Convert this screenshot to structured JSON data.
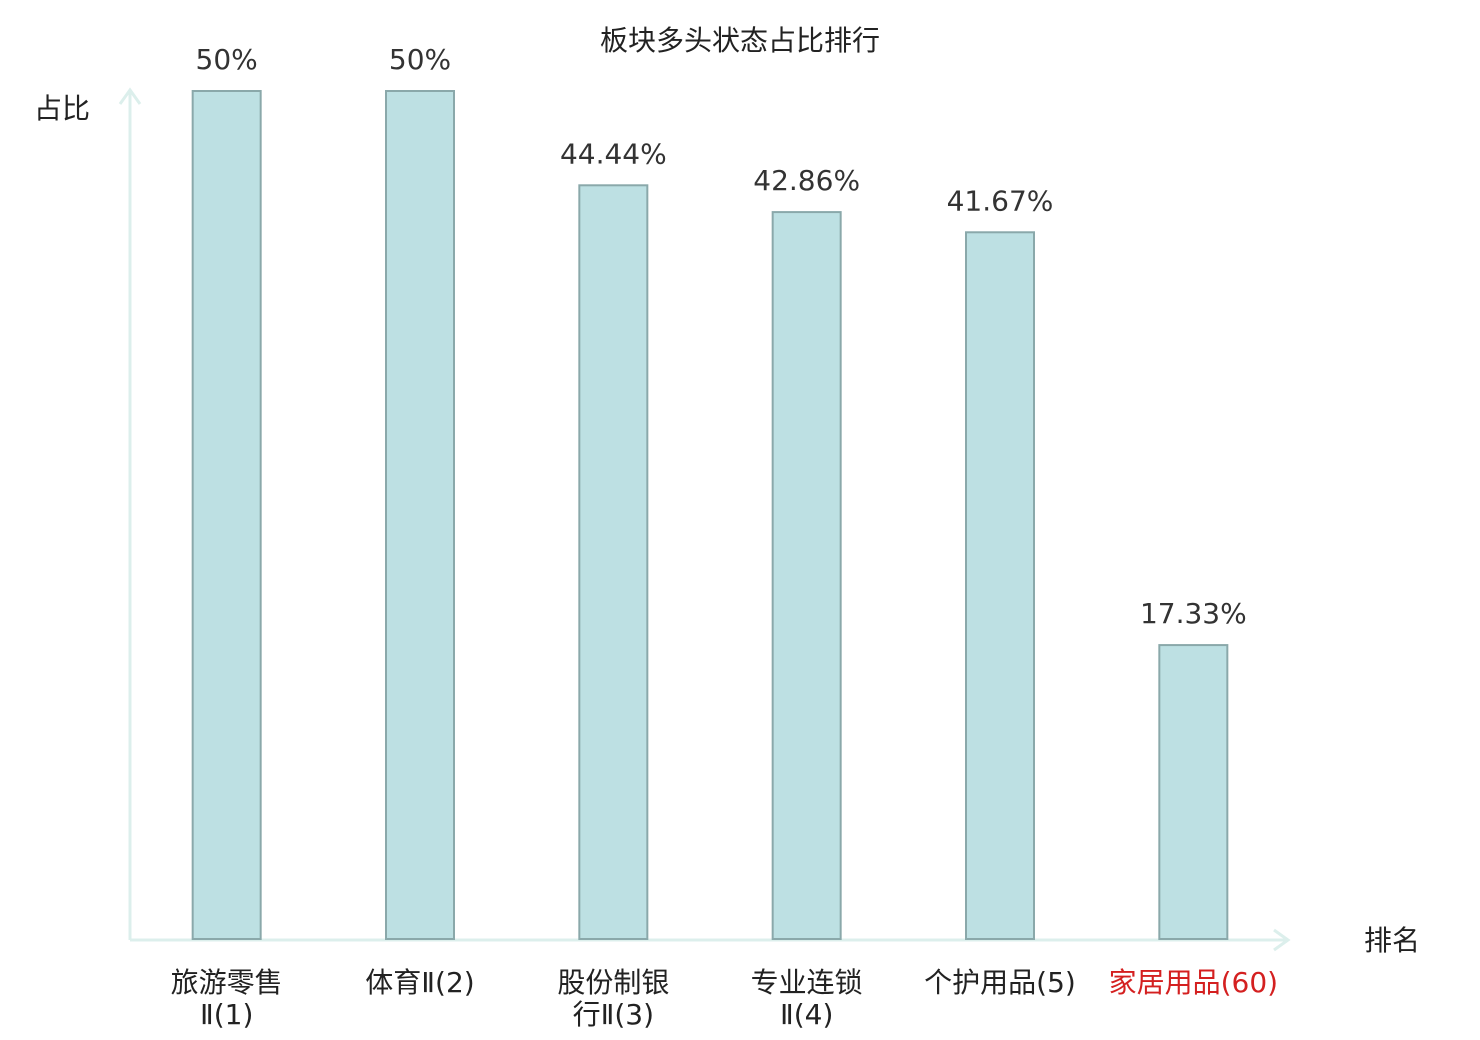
{
  "chart_data": {
    "type": "bar",
    "title": "板块多头状态占比排行",
    "y_label": "占比",
    "x_label": "排名",
    "categories": [
      "旅游零售Ⅱ(1)",
      "体育Ⅱ(2)",
      "股份制银行Ⅱ(3)",
      "专业连锁Ⅱ(4)",
      "个护用品(5)",
      "家居用品(60)"
    ],
    "label_colors": [
      "#222222",
      "#222222",
      "#222222",
      "#222222",
      "#222222",
      "#d42020"
    ],
    "values": [
      50,
      50,
      44.44,
      42.86,
      41.67,
      17.33
    ],
    "value_labels": [
      "50%",
      "50%",
      "44.44%",
      "42.86%",
      "41.67%",
      "17.33%"
    ],
    "color": "#bde0e3",
    "edge_color": "#8aa8aa",
    "ylim": [
      0,
      50
    ]
  }
}
